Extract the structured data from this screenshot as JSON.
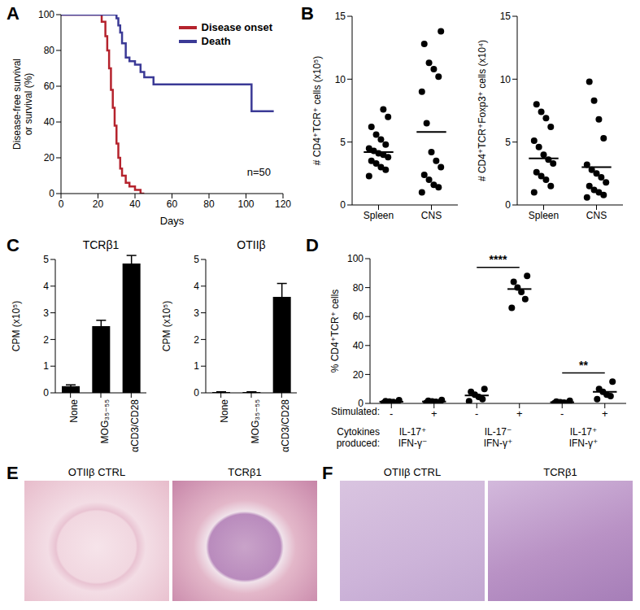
{
  "chart_data": [
    {
      "panel": "A",
      "type": "line",
      "line_style": "step",
      "x": [
        0,
        22,
        24,
        25,
        26,
        27,
        28,
        29,
        30,
        31,
        32,
        33,
        35,
        37,
        40,
        43,
        45,
        50,
        100,
        103,
        115
      ],
      "series": [
        {
          "name": "Disease onset",
          "color": "#b5232d",
          "values": [
            100,
            96,
            88,
            80,
            70,
            58,
            48,
            38,
            28,
            20,
            14,
            10,
            6,
            4,
            2,
            0,
            0,
            null,
            null,
            null,
            null
          ]
        },
        {
          "name": "Death",
          "color": "#3b3a96",
          "values": [
            100,
            100,
            100,
            100,
            100,
            100,
            100,
            100,
            98,
            94,
            90,
            84,
            76,
            74,
            72,
            68,
            65,
            61,
            61,
            46,
            46
          ]
        }
      ],
      "x_label": "Days",
      "y_label": "Disease-free survival or survival (%)",
      "annotation": "n=50",
      "xlim": [
        0,
        120
      ],
      "xticks": [
        0,
        20,
        40,
        60,
        80,
        100,
        120
      ],
      "ylim": [
        0,
        100
      ],
      "yticks": [
        0,
        20,
        40,
        60,
        80,
        100
      ],
      "legend": "top-right"
    },
    {
      "panel": "B",
      "type": "scatter",
      "color": "#000000",
      "categories": [
        "Spleen",
        "CNS"
      ],
      "values": [
        [
          2.3,
          2.8,
          3.0,
          3.3,
          3.5,
          3.8,
          4.0,
          4.1,
          4.3,
          4.5,
          4.8,
          5.2,
          5.6,
          6.2,
          7.0,
          7.6
        ],
        [
          1.0,
          1.4,
          1.6,
          2.0,
          2.4,
          3.0,
          3.5,
          4.2,
          6.5,
          9.0,
          10.2,
          10.8,
          11.3,
          12.8,
          13.8
        ]
      ],
      "means": [
        4.2,
        5.8
      ],
      "y_label": "# CD4⁺TCR⁺ cells (x10⁵)",
      "ylim": [
        0,
        15
      ],
      "yticks": [
        0,
        5,
        10,
        15
      ]
    },
    {
      "type": "scatter",
      "color": "#000000",
      "categories": [
        "Spleen",
        "CNS"
      ],
      "values": [
        [
          1.0,
          1.5,
          2.0,
          2.3,
          2.6,
          3.3,
          3.6,
          4.0,
          4.6,
          5.1,
          6.2,
          6.9,
          7.4,
          8.0
        ],
        [
          0.6,
          0.8,
          1.0,
          1.2,
          1.5,
          1.8,
          2.2,
          2.5,
          2.8,
          3.2,
          5.3,
          6.8,
          8.3,
          9.8
        ]
      ],
      "means": [
        3.7,
        3.0
      ],
      "y_label": "# CD4⁺TCR⁺Foxp3⁺ cells (x10⁴)",
      "ylim": [
        0,
        15
      ],
      "yticks": [
        0,
        5,
        10,
        15
      ]
    },
    {
      "panel": "C",
      "type": "bar",
      "title": "TCRβ1",
      "color": "#000000",
      "categories": [
        "None",
        "MOG₃₅₋₅₅",
        "αCD3/CD28"
      ],
      "values": [
        0.25,
        2.5,
        4.85
      ],
      "errors": [
        0.05,
        0.22,
        0.3
      ],
      "y_label": "CPM (x10⁵)",
      "ylim": [
        0,
        5
      ],
      "yticks": [
        0,
        1,
        2,
        3,
        4,
        5
      ]
    },
    {
      "type": "bar",
      "title": "OTIIβ",
      "color": "#000000",
      "categories": [
        "None",
        "MOG₃₅₋₅₅",
        "αCD3/CD28"
      ],
      "values": [
        0.03,
        0.03,
        3.6
      ],
      "errors": [
        0.01,
        0.01,
        0.5
      ],
      "y_label": "CPM (x10⁵)",
      "ylim": [
        0,
        5
      ],
      "yticks": [
        0,
        1,
        2,
        3,
        4,
        5
      ]
    },
    {
      "panel": "D",
      "type": "scatter",
      "color": "#000000",
      "categories": [
        "-",
        "+",
        "-",
        "+",
        "-",
        "+"
      ],
      "values": [
        [
          0.3,
          0.6,
          1.0,
          1.2,
          1.6,
          2.2
        ],
        [
          0.4,
          0.8,
          1.1,
          1.4,
          1.8,
          2.4
        ],
        [
          1.5,
          3.0,
          4.5,
          6.0,
          8.0,
          10.0
        ],
        [
          66,
          72,
          77,
          80,
          84,
          88
        ],
        [
          0.2,
          0.4,
          0.6,
          0.9,
          1.2,
          1.8
        ],
        [
          3,
          5,
          6,
          8,
          10,
          15
        ]
      ],
      "means": [
        1.2,
        1.3,
        5.5,
        79,
        0.8,
        8
      ],
      "y_label": "% CD4⁺TCR⁺ cells",
      "x_label": "Stimulated:",
      "group_title": "Cytokines produced:",
      "groups": [
        [
          "IL-17⁺",
          "IFN-γ⁻"
        ],
        [
          "IL-17⁻",
          "IFN-γ⁺"
        ],
        [
          "IL-17⁺",
          "IFN-γ⁺"
        ]
      ],
      "significance": [
        {
          "between": [
            2,
            3
          ],
          "label": "****"
        },
        {
          "between": [
            4,
            5
          ],
          "label": "**"
        }
      ],
      "ylim": [
        0,
        100
      ],
      "yticks": [
        0,
        20,
        40,
        60,
        80,
        100
      ]
    }
  ],
  "images": [
    {
      "panel": "E",
      "labels": [
        "OTIIβ CTRL",
        "TCRβ1"
      ]
    },
    {
      "panel": "F",
      "labels": [
        "OTIIβ CTRL",
        "TCRβ1"
      ]
    }
  ]
}
